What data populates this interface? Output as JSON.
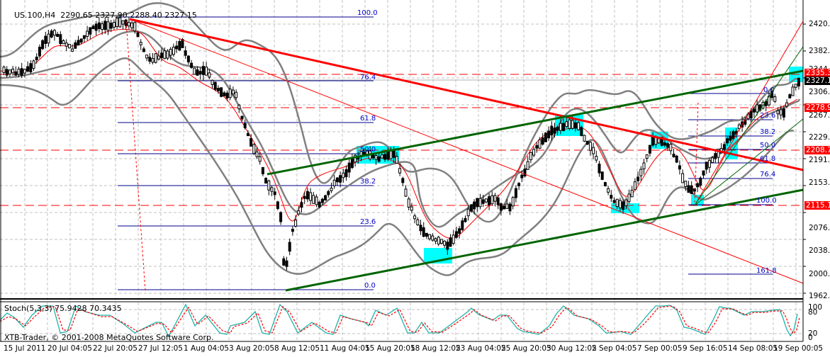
{
  "header": {
    "symbol": "US.100,H4",
    "ohlc": "2290.65 2327.90 2288.40 2327.15"
  },
  "stochastic": {
    "label": "Stoch(5,3,3) 75.9428 70.3435",
    "levels": [
      "100",
      "80",
      "20",
      "0"
    ]
  },
  "copyright": "XTB-Trader, © 2001-2008 MetaQuotes Software Corp.",
  "colors": {
    "background": "#ffffff",
    "grid": "#c0c0c0",
    "candle": "#000000",
    "bollinger": "#808080",
    "ma": "#ff0000",
    "trend_red": "#ff0000",
    "trend_green": "#006400",
    "fib": "#00008b",
    "highlight": "#00ffff",
    "stoch_main": "#20b2aa",
    "stoch_signal": "#ff0000"
  },
  "chart_data": {
    "type": "candlestick",
    "title": "US.100,H4",
    "ohlc_last": {
      "open": 2290.65,
      "high": 2327.9,
      "low": 2288.4,
      "close": 2327.15
    },
    "y_ticks": [
      "2420.00",
      "2382.05",
      "2344.10",
      "2306.15",
      "2267.05",
      "2229.10",
      "2191.15",
      "2153.20",
      "2115.11",
      "2076.15",
      "2038.20",
      "2000.25",
      "1962.30"
    ],
    "ylim": [
      1950,
      2440
    ],
    "x_ticks": [
      "15 Jul 2011",
      "20 Jul 04:05",
      "22 Jul 20:05",
      "27 Jul 12:05",
      "1 Aug 04:05",
      "3 Aug 20:05",
      "8 Aug 12:05",
      "11 Aug 04:05",
      "15 Aug 20:05",
      "18 Aug 12:05",
      "23 Aug 04:05",
      "25 Aug 20:05",
      "30 Aug 12:05",
      "2 Sep 04:05",
      "7 Sep 00:05",
      "9 Sep 16:05",
      "14 Sep 08:05",
      "19 Sep 00:05"
    ],
    "price_tags": [
      {
        "value": "2335.36",
        "color": "#ff0000"
      },
      {
        "value": "2327.15",
        "color": "#000000"
      },
      {
        "value": "2278.99",
        "color": "#ff0000"
      },
      {
        "value": "2208.77",
        "color": "#ff0000"
      },
      {
        "value": "2115.11",
        "color": "#ff0000"
      }
    ],
    "horizontal_levels": [
      2335.36,
      2278.99,
      2208.77,
      2115.11
    ],
    "fibonacci_1": {
      "levels": [
        "100.0",
        "76.4",
        "61.8",
        "50.0",
        "38.2",
        "23.6",
        "0.0"
      ],
      "high": 2425,
      "low": 1970
    },
    "fibonacci_2": {
      "levels": [
        "0.0",
        "23.6",
        "38.2",
        "50.0",
        "61.8",
        "76.4",
        "100.0",
        "161.8"
      ]
    },
    "indicators": [
      "Bollinger Bands",
      "Moving Average",
      "Stochastic(5,3,3)"
    ],
    "stoch_main_last": 75.9428,
    "stoch_signal_last": 70.3435
  }
}
